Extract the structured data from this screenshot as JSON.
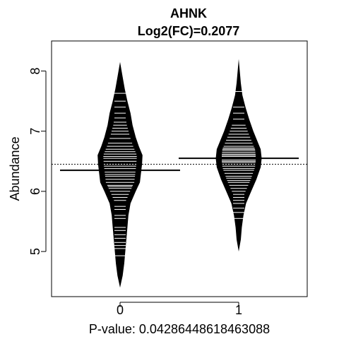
{
  "chart_data": {
    "type": "beanplot",
    "title": "AHNK",
    "subtitle": "Log2(FC)=0.2077",
    "ylabel": "Abundance",
    "xlabel": "P-value: 0.0428644861846308​8",
    "categories": [
      "0",
      "1"
    ],
    "y_ticks": [
      "5",
      "6",
      "7",
      "8"
    ],
    "ylim": [
      4.25,
      8.5
    ],
    "overall_mean": 6.45,
    "colors": {
      "bean": "#000000",
      "line": "#ffffff",
      "mean": "#000000"
    },
    "series": [
      {
        "category": "0",
        "mean": 6.35,
        "min": 4.4,
        "max": 8.15,
        "density": [
          [
            4.4,
            0.0
          ],
          [
            4.6,
            0.05
          ],
          [
            4.8,
            0.08
          ],
          [
            5.0,
            0.1
          ],
          [
            5.2,
            0.12
          ],
          [
            5.4,
            0.14
          ],
          [
            5.6,
            0.16
          ],
          [
            5.8,
            0.2
          ],
          [
            6.0,
            0.3
          ],
          [
            6.15,
            0.38
          ],
          [
            6.3,
            0.4
          ],
          [
            6.45,
            0.42
          ],
          [
            6.6,
            0.43
          ],
          [
            6.75,
            0.36
          ],
          [
            6.9,
            0.3
          ],
          [
            7.1,
            0.24
          ],
          [
            7.3,
            0.2
          ],
          [
            7.5,
            0.14
          ],
          [
            7.7,
            0.09
          ],
          [
            7.9,
            0.05
          ],
          [
            8.15,
            0.0
          ]
        ],
        "observations": [
          4.93,
          5.05,
          5.1,
          5.15,
          5.22,
          5.28,
          5.35,
          5.4,
          5.55,
          5.6,
          5.7,
          5.75,
          5.85,
          5.9,
          5.95,
          6.0,
          6.05,
          6.08,
          6.1,
          6.15,
          6.2,
          6.25,
          6.28,
          6.32,
          6.38,
          6.42,
          6.45,
          6.5,
          6.55,
          6.58,
          6.62,
          6.66,
          6.7,
          6.75,
          6.8,
          6.88,
          6.95,
          7.0,
          7.05,
          7.1,
          7.15,
          7.22,
          7.3,
          7.4,
          7.5,
          7.63
        ]
      },
      {
        "category": "1",
        "mean": 6.55,
        "min": 5.0,
        "max": 8.2,
        "density": [
          [
            5.0,
            0.0
          ],
          [
            5.2,
            0.04
          ],
          [
            5.4,
            0.06
          ],
          [
            5.6,
            0.09
          ],
          [
            5.8,
            0.14
          ],
          [
            6.0,
            0.24
          ],
          [
            6.2,
            0.34
          ],
          [
            6.4,
            0.42
          ],
          [
            6.55,
            0.44
          ],
          [
            6.7,
            0.42
          ],
          [
            6.85,
            0.35
          ],
          [
            7.0,
            0.28
          ],
          [
            7.2,
            0.2
          ],
          [
            7.4,
            0.13
          ],
          [
            7.6,
            0.07
          ],
          [
            7.8,
            0.04
          ],
          [
            8.0,
            0.02
          ],
          [
            8.2,
            0.0
          ]
        ],
        "observations": [
          5.55,
          5.65,
          5.72,
          5.8,
          5.85,
          5.9,
          5.95,
          6.0,
          6.05,
          6.1,
          6.15,
          6.18,
          6.22,
          6.25,
          6.3,
          6.35,
          6.38,
          6.42,
          6.45,
          6.48,
          6.5,
          6.52,
          6.55,
          6.58,
          6.6,
          6.62,
          6.65,
          6.68,
          6.7,
          6.72,
          6.75,
          6.8,
          6.85,
          6.9,
          6.95,
          7.0,
          7.05,
          7.1,
          7.2,
          7.3,
          7.4,
          7.66
        ]
      }
    ]
  }
}
